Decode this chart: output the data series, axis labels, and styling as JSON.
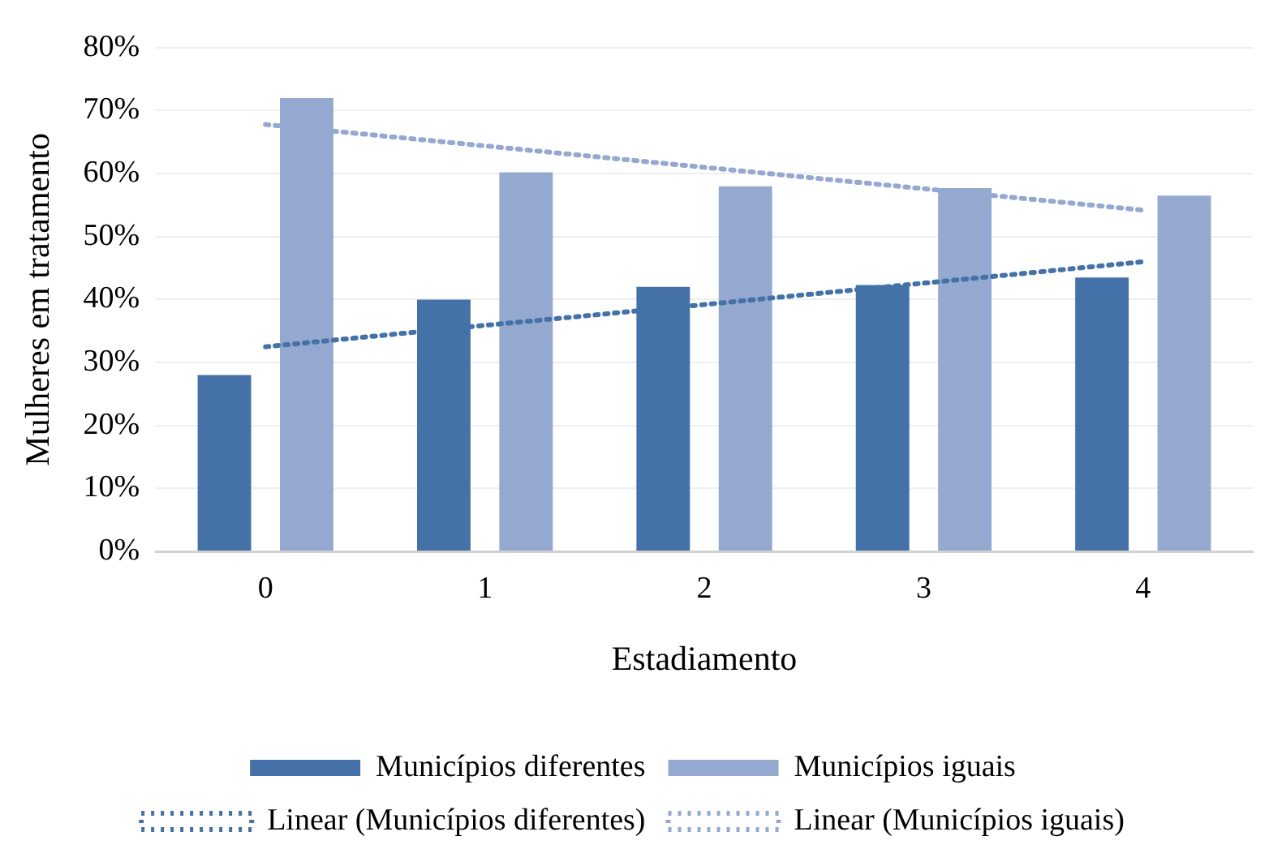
{
  "chart_data": {
    "type": "bar",
    "xlabel": "Estadiamento",
    "ylabel": "Mulheres em tratamento",
    "categories": [
      "0",
      "1",
      "2",
      "3",
      "4"
    ],
    "series": [
      {
        "name": "Municípios diferentes",
        "color": "#4472a8",
        "values": [
          28,
          40,
          42,
          42.3,
          43.5
        ]
      },
      {
        "name": "Municípios iguais",
        "color": "#95a9d0",
        "values": [
          72,
          60.2,
          58,
          57.7,
          56.5
        ]
      },
      {
        "name": "Linear (Municípios diferentes)",
        "type": "line",
        "line_style": "dotted",
        "color": "#4472a8",
        "values": [
          32.5,
          35.9,
          39.2,
          42.6,
          46
        ]
      },
      {
        "name": "Linear (Municípios iguais)",
        "type": "line",
        "line_style": "dotted",
        "color": "#95a9d0",
        "values": [
          67.8,
          64.4,
          61,
          57.6,
          54.2
        ]
      }
    ],
    "ylim": [
      0,
      80
    ],
    "yticks": [
      {
        "value": 0,
        "label": "0%"
      },
      {
        "value": 10,
        "label": "10%"
      },
      {
        "value": 20,
        "label": "20%"
      },
      {
        "value": 30,
        "label": "30%"
      },
      {
        "value": 40,
        "label": "40%"
      },
      {
        "value": 50,
        "label": "50%"
      },
      {
        "value": 60,
        "label": "60%"
      },
      {
        "value": 70,
        "label": "70%"
      },
      {
        "value": 80,
        "label": "80%"
      }
    ],
    "grid": "y",
    "legend": "bottom",
    "marker": "none"
  }
}
